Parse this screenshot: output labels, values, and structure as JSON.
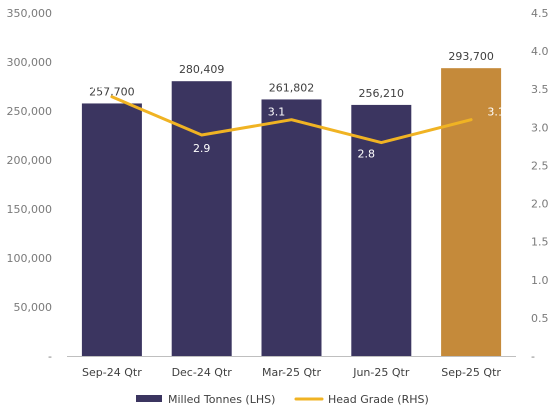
{
  "chart_data": {
    "type": "bar",
    "categories": [
      "Sep-24 Qtr",
      "Dec-24 Qtr",
      "Mar-25 Qtr",
      "Jun-25 Qtr",
      "Sep-25 Qtr"
    ],
    "series": [
      {
        "name": "Milled Tonnes (LHS)",
        "type": "bar",
        "axis": "left",
        "values": [
          257700,
          280409,
          261802,
          256210,
          293700
        ],
        "labels": [
          "257,700",
          "280,409",
          "261,802",
          "256,210",
          "293,700"
        ]
      },
      {
        "name": "Head Grade (RHS)",
        "type": "line",
        "axis": "right",
        "values": [
          3.4,
          2.9,
          3.1,
          2.8,
          3.1
        ],
        "labels": [
          "3.4",
          "2.9",
          "3.1",
          "2.8",
          "3.1"
        ]
      }
    ],
    "y_left": {
      "min": 0,
      "max": 350000,
      "ticks": [
        0,
        50000,
        100000,
        150000,
        200000,
        250000,
        300000,
        350000
      ],
      "tick_labels": [
        "-",
        "50,000",
        "100,000",
        "150,000",
        "200,000",
        "250,000",
        "300,000",
        "350,000"
      ]
    },
    "y_right": {
      "min": 0,
      "max": 4.5,
      "ticks": [
        0,
        0.5,
        1.0,
        1.5,
        2.0,
        2.5,
        3.0,
        3.5,
        4.0,
        4.5
      ],
      "tick_labels": [
        "-",
        "0.5",
        "1.0",
        "1.5",
        "2.0",
        "2.5",
        "3.0",
        "3.5",
        "4.0",
        "4.5"
      ]
    },
    "grid": false,
    "legend_position": "bottom",
    "colors": {
      "bar_default": "#3b3560",
      "bar_highlight": "#c58a3a",
      "line": "#f0b323",
      "axis": "#bfbfbf"
    },
    "highlight_index": 4
  }
}
